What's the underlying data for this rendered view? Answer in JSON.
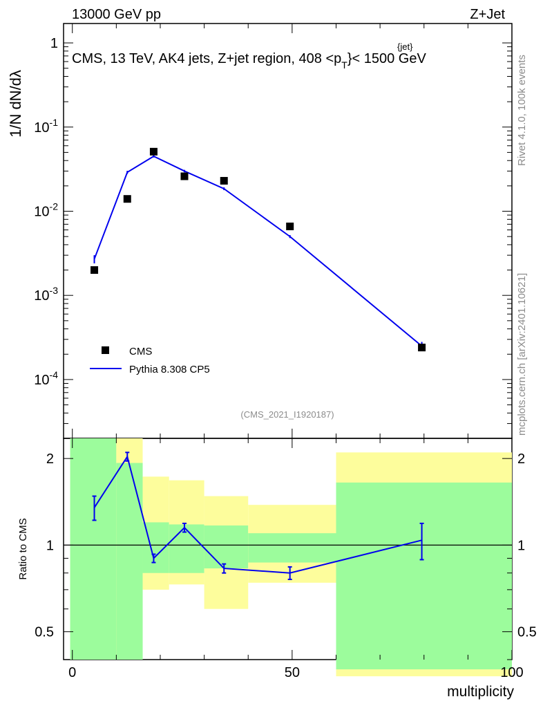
{
  "header": {
    "energy_label": "13000 GeV pp",
    "process_label": "Z+Jet",
    "plot_title": "CMS, 13 TeV, AK4 jets, Z+jet region, 408 <p",
    "plot_title_sup": "{jet}",
    "plot_title_sub": "T",
    "plot_title_end": "}< 1500 GeV",
    "analysis_id": "(CMS_2021_I1920187)",
    "rivet_label": "Rivet 4.1.0,  100k events",
    "mcplots_label": "mcplots.cern.ch [arXiv:2401.10621]"
  },
  "y_axis_label_main": "1/N dN/dλ",
  "y_axis_label_ratio": "Ratio to CMS",
  "x_axis_label": "multiplicity",
  "legend": {
    "data_label": "CMS",
    "mc_label": "Pythia 8.308 CP5"
  },
  "colors": {
    "mc_line": "#0000ee",
    "data_marker": "#000000",
    "band_inner": "#9cfc9c",
    "band_outer": "#fdfd9c"
  },
  "chart_data": [
    {
      "type": "scatter",
      "title": "CMS, 13 TeV, AK4 jets, Z+jet region, 408 < pT < 1500 GeV",
      "xlabel": "multiplicity",
      "ylabel": "1/N dN/dλ",
      "yscale": "log",
      "xlim": [
        -2,
        100
      ],
      "ylim": [
        2e-05,
        1.7
      ],
      "y_ticks": [
        {
          "value": 1,
          "label": "1"
        },
        {
          "value": 0.1,
          "label": "10^-1"
        },
        {
          "value": 0.01,
          "label": "10^-2"
        },
        {
          "value": 0.001,
          "label": "10^-3"
        },
        {
          "value": 0.0001,
          "label": "10^-4"
        }
      ],
      "series": [
        {
          "name": "CMS",
          "kind": "marker",
          "x": [
            5,
            12.5,
            18.5,
            25.5,
            34.5,
            49.5,
            79.5
          ],
          "y": [
            0.002,
            0.014,
            0.051,
            0.026,
            0.023,
            0.0066,
            0.00024
          ]
        },
        {
          "name": "Pythia 8.308 CP5",
          "kind": "line",
          "x": [
            5,
            12.5,
            18.5,
            25.5,
            34.5,
            49.5,
            79.5
          ],
          "y": [
            0.0027,
            0.029,
            0.045,
            0.03,
            0.0185,
            0.005,
            0.00025
          ],
          "err": [
            0.0003,
            0.0012,
            0.0015,
            0.001,
            0.0007,
            0.0002,
            3e-05
          ]
        }
      ]
    },
    {
      "type": "line",
      "title": "Ratio to CMS",
      "xlabel": "multiplicity",
      "ylabel": "Ratio to CMS",
      "yscale": "log",
      "xlim": [
        -2,
        100
      ],
      "ylim": [
        0.4,
        2.35
      ],
      "x_ticks": [
        0,
        50,
        100
      ],
      "y_ticks": [
        0.5,
        1,
        2
      ],
      "bins": [
        {
          "lo": -0.5,
          "hi": 10,
          "inner": [
            0.4,
            2.35
          ],
          "outer": [
            0.4,
            2.35
          ]
        },
        {
          "lo": 10,
          "hi": 16,
          "inner": [
            0.4,
            1.93
          ],
          "outer": [
            0.4,
            2.35
          ]
        },
        {
          "lo": 16,
          "hi": 22,
          "inner": [
            0.8,
            1.2
          ],
          "outer": [
            0.7,
            1.73
          ]
        },
        {
          "lo": 22,
          "hi": 30,
          "inner": [
            0.8,
            1.18
          ],
          "outer": [
            0.73,
            1.68
          ]
        },
        {
          "lo": 30,
          "hi": 40,
          "inner": [
            0.83,
            1.17
          ],
          "outer": [
            0.6,
            1.48
          ]
        },
        {
          "lo": 40,
          "hi": 60,
          "inner": [
            0.87,
            1.1
          ],
          "outer": [
            0.74,
            1.38
          ]
        },
        {
          "lo": 60,
          "hi": 100,
          "inner": [
            0.37,
            1.65
          ],
          "outer": [
            0.35,
            2.1
          ]
        }
      ],
      "series": [
        {
          "name": "Pythia 8.308 CP5 / CMS",
          "x": [
            5,
            12.5,
            18.5,
            25.5,
            34.5,
            49.5,
            79.5
          ],
          "y": [
            1.35,
            2.03,
            0.9,
            1.15,
            0.83,
            0.8,
            1.04
          ],
          "err": [
            0.13,
            0.07,
            0.03,
            0.04,
            0.03,
            0.04,
            0.15
          ]
        }
      ],
      "reference_line": 1
    }
  ]
}
